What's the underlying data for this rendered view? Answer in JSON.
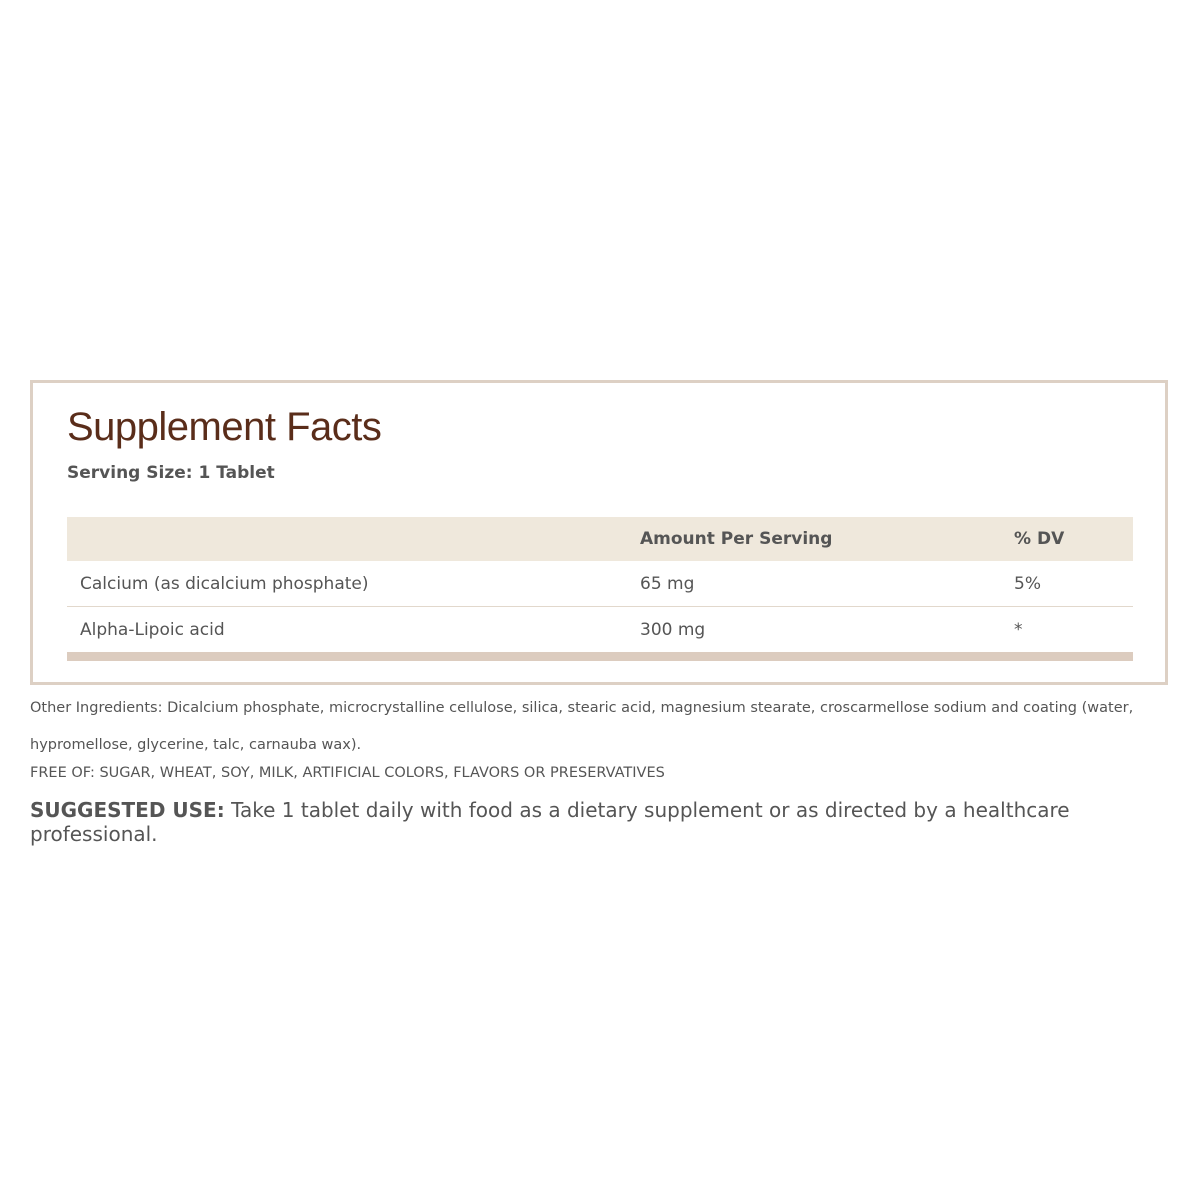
{
  "panel": {
    "title": "Supplement Facts",
    "serving_size": "Serving Size: 1 Tablet",
    "columns": [
      "",
      "Amount Per Serving",
      "% DV"
    ],
    "rows": [
      {
        "name": "Calcium (as dicalcium phosphate)",
        "amount": "65 mg",
        "dv": "5%"
      },
      {
        "name": "Alpha-Lipoic acid",
        "amount": "300 mg",
        "dv": "*"
      }
    ]
  },
  "other_ingredients": "Other Ingredients: Dicalcium phosphate, microcrystalline cellulose, silica, stearic acid, magnesium stearate, croscarmellose sodium and coating (water, hypromellose, glycerine, talc, carnauba wax).",
  "free_of": "FREE OF: SUGAR, WHEAT, SOY, MILK, ARTIFICIAL COLORS, FLAVORS OR PRESERVATIVES",
  "suggested_use": {
    "label": "SUGGESTED USE:",
    "text": " Take 1 tablet daily with food as a dietary supplement or as directed by a healthcare professional."
  },
  "colors": {
    "title": "#5a2d1a",
    "border": "#ddd0c4",
    "header_bg": "#efe8dc"
  }
}
